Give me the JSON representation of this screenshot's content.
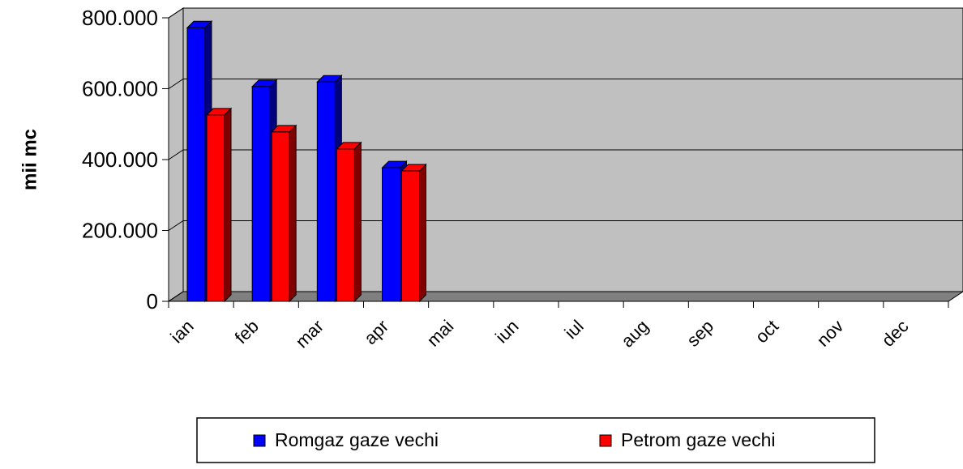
{
  "chart_data": {
    "type": "bar",
    "y_label": "mii mc",
    "categories": [
      "ian",
      "feb",
      "mar",
      "apr",
      "mai",
      "iun",
      "iul",
      "aug",
      "sep",
      "oct",
      "nov",
      "dec"
    ],
    "series": [
      {
        "name": "Romgaz gaze vechi",
        "color": "#0000ff",
        "values": [
          772000,
          606000,
          619000,
          377000,
          null,
          null,
          null,
          null,
          null,
          null,
          null,
          null
        ]
      },
      {
        "name": "Petrom gaze vechi",
        "color": "#ff0000",
        "values": [
          526000,
          478000,
          430000,
          368000,
          null,
          null,
          null,
          null,
          null,
          null,
          null,
          null
        ]
      }
    ],
    "ylim": [
      0,
      800000
    ],
    "yticks": [
      0,
      {
        "value": 200000,
        "label": "200.000"
      },
      {
        "value": 400000,
        "label": "400.000"
      },
      {
        "value": 600000,
        "label": "600.000"
      },
      {
        "value": 800000,
        "label": "800.000"
      }
    ],
    "grid": true,
    "legend": "bottom"
  }
}
